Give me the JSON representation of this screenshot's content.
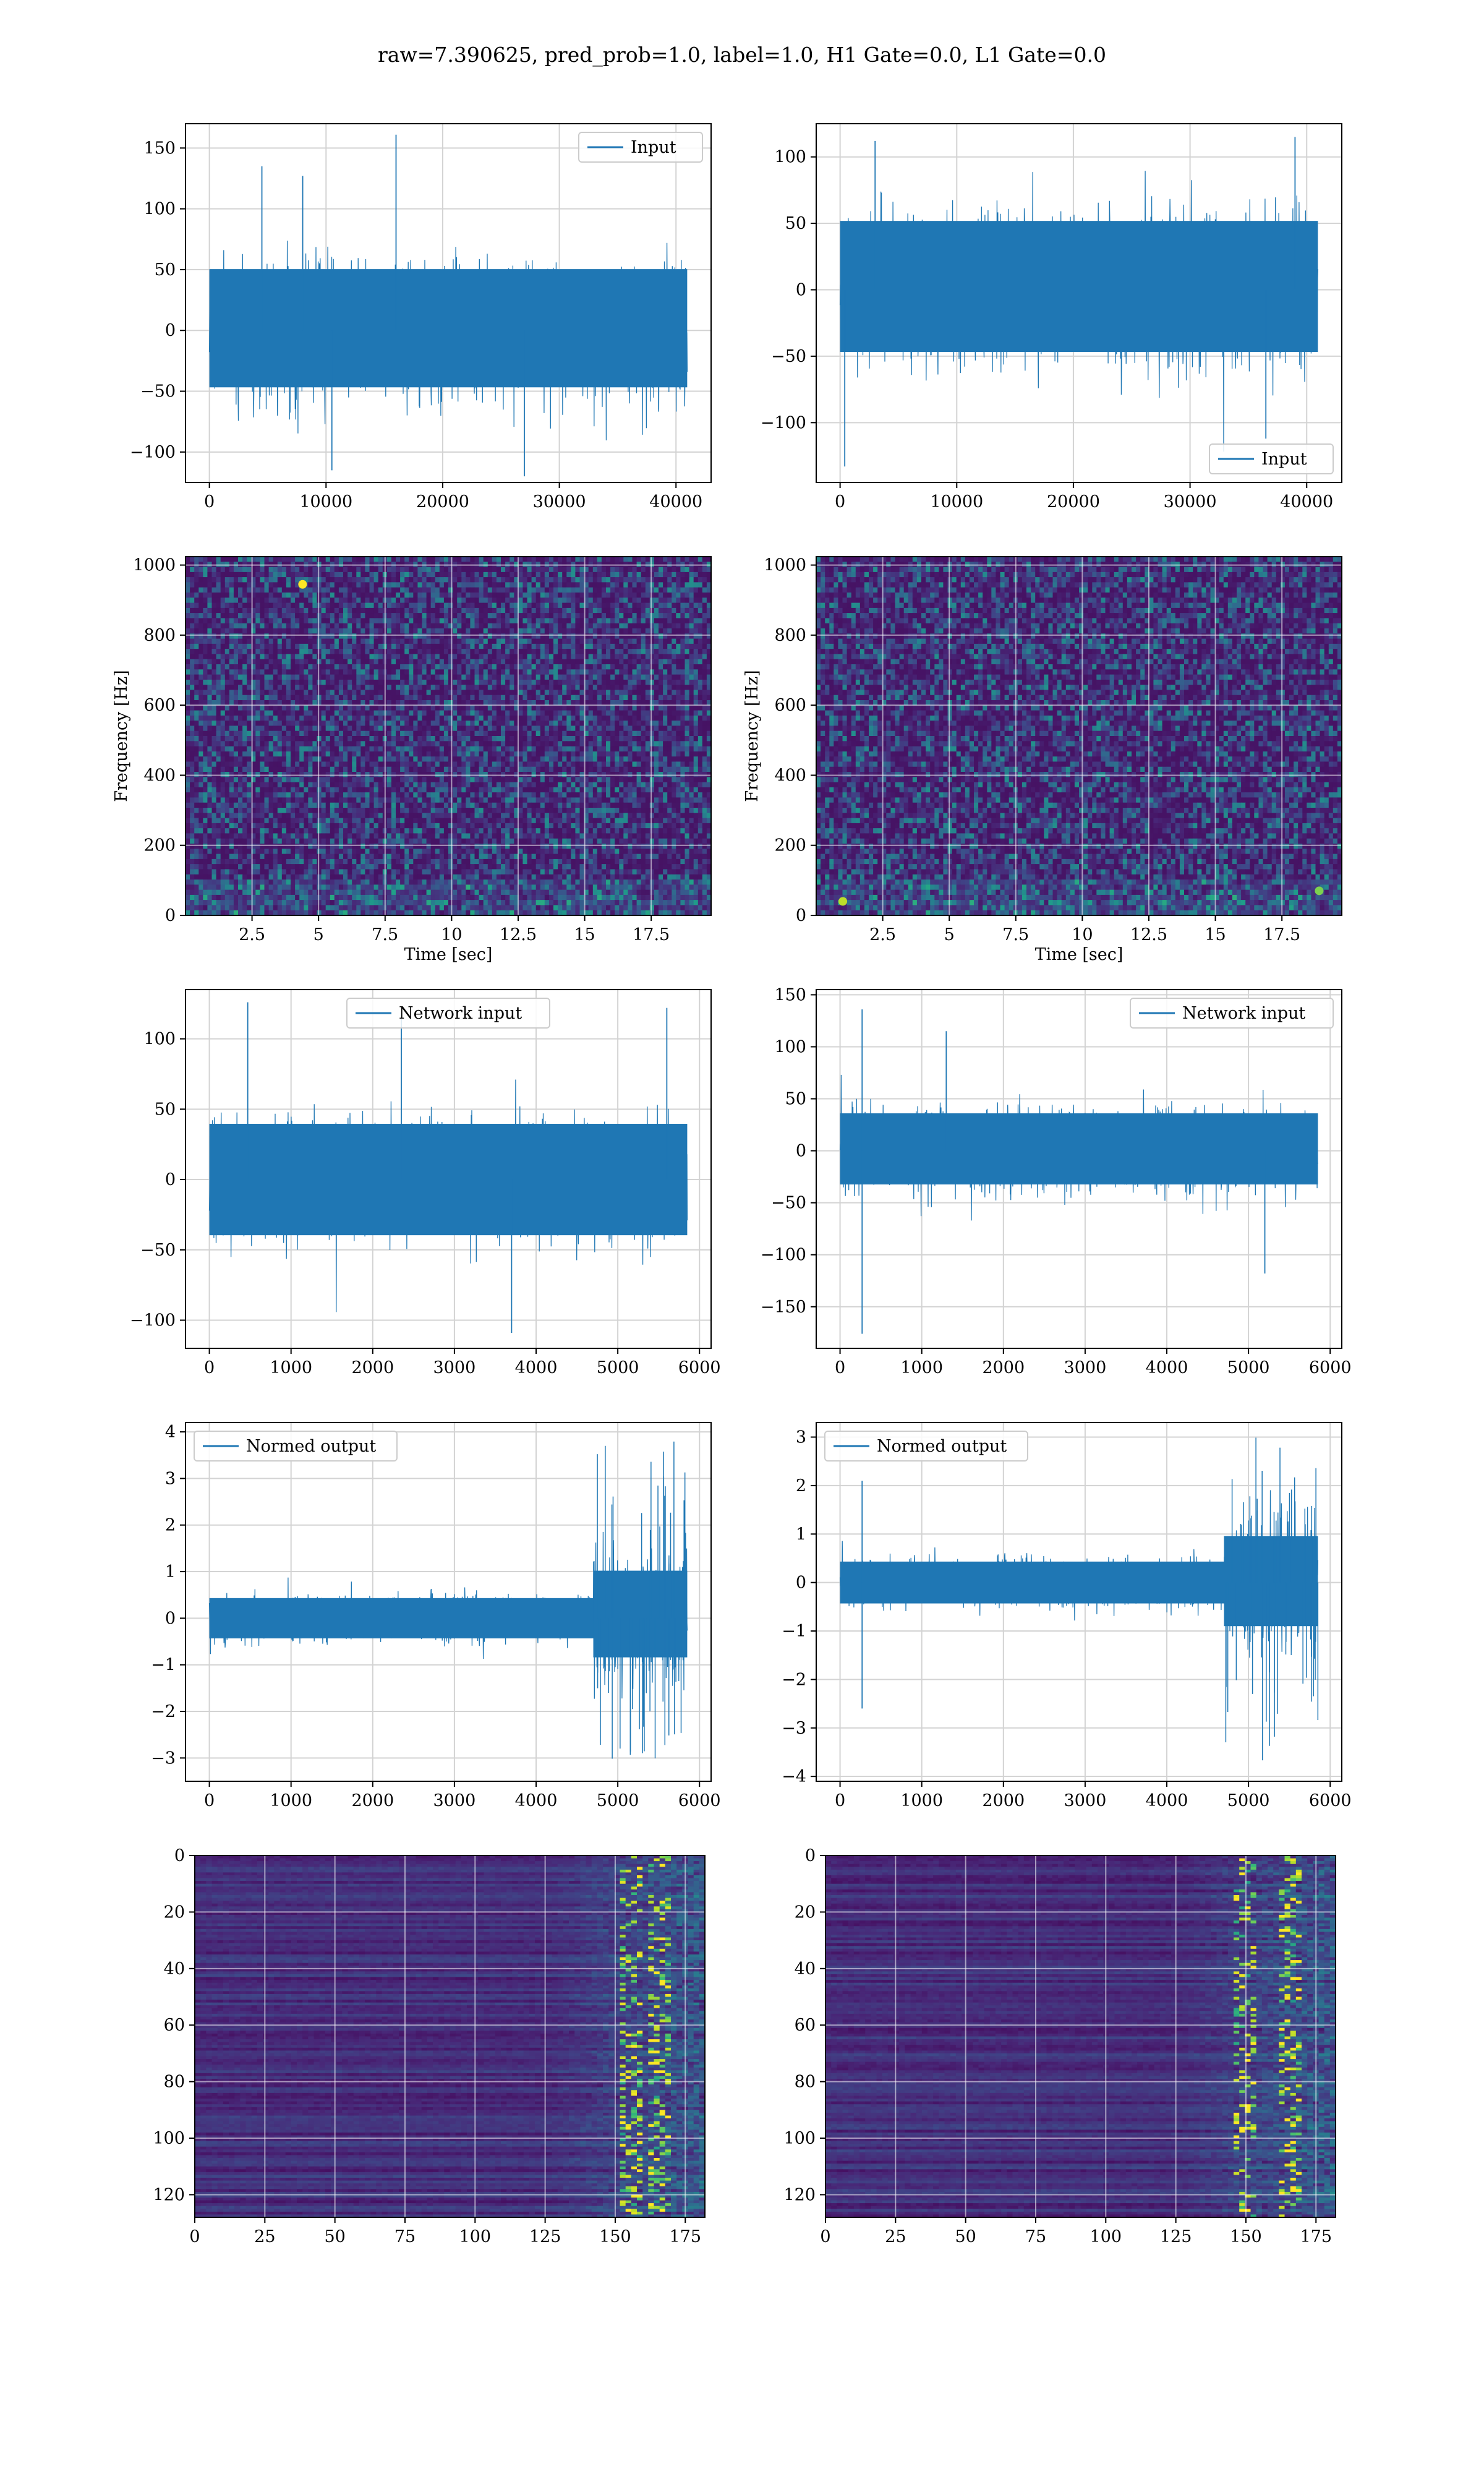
{
  "title": "raw=7.390625, pred_prob=1.0, label=1.0, H1 Gate=0.0, L1 Gate=0.0",
  "colors": {
    "series": "#1f77b4",
    "grid": "#d3d3d3",
    "viridis_low": "#440154",
    "viridis_high": "#fde725"
  },
  "chart_data": [
    {
      "id": "h1-input",
      "type": "line",
      "legend": "Input",
      "legend_loc": "upper right",
      "grid": true,
      "x_range": [
        0,
        40960
      ],
      "xlim": [
        -2048,
        43008
      ],
      "ylim": [
        -125,
        170
      ],
      "xticks": [
        0,
        10000,
        20000,
        30000,
        40000
      ],
      "yticks": [
        -100,
        -50,
        0,
        50,
        100,
        150
      ],
      "envelope": {
        "center": 0,
        "typical_band": [
          -65,
          70
        ],
        "max": 161,
        "min": -120,
        "spikes": [
          [
            16000,
            161
          ],
          [
            4500,
            135
          ],
          [
            8000,
            127
          ],
          [
            27000,
            -120
          ],
          [
            10500,
            -115
          ]
        ]
      }
    },
    {
      "id": "l1-input",
      "type": "line",
      "legend": "Input",
      "legend_loc": "lower right",
      "grid": true,
      "x_range": [
        0,
        40960
      ],
      "xlim": [
        -2048,
        43008
      ],
      "ylim": [
        -145,
        125
      ],
      "xticks": [
        0,
        10000,
        20000,
        30000,
        40000
      ],
      "yticks": [
        -100,
        -50,
        0,
        50,
        100
      ],
      "envelope": {
        "center": 0,
        "typical_band": [
          -65,
          72
        ],
        "max": 115,
        "min": -133,
        "spikes": [
          [
            400,
            -133
          ],
          [
            36500,
            -112
          ],
          [
            39000,
            115
          ],
          [
            3000,
            112
          ]
        ]
      }
    },
    {
      "id": "h1-spectrogram",
      "type": "heatmap",
      "colormap": "viridis",
      "grid": true,
      "xlabel": "Time [sec]",
      "ylabel": "Frequency [Hz]",
      "xlim": [
        0,
        19.75
      ],
      "ylim": [
        0,
        1024
      ],
      "xticks": [
        2.5,
        5.0,
        7.5,
        10.0,
        12.5,
        15.0,
        17.5
      ],
      "yticks": [
        0,
        200,
        400,
        600,
        800,
        1000
      ],
      "hotspots": [
        [
          4.4,
          945,
          1.0
        ]
      ]
    },
    {
      "id": "l1-spectrogram",
      "type": "heatmap",
      "colormap": "viridis",
      "grid": true,
      "xlabel": "Time [sec]",
      "ylabel": "Frequency [Hz]",
      "xlim": [
        0,
        19.75
      ],
      "ylim": [
        0,
        1024
      ],
      "xticks": [
        2.5,
        5.0,
        7.5,
        10.0,
        12.5,
        15.0,
        17.5
      ],
      "yticks": [
        0,
        200,
        400,
        600,
        800,
        1000
      ],
      "hotspots": [
        [
          1.0,
          40,
          0.9
        ],
        [
          18.9,
          70,
          0.8
        ]
      ]
    },
    {
      "id": "h1-network-input",
      "type": "line",
      "legend": "Network input",
      "legend_loc": "upper center",
      "grid": true,
      "x_range": [
        0,
        5850
      ],
      "xlim": [
        -292,
        6142
      ],
      "ylim": [
        -120,
        135
      ],
      "xticks": [
        0,
        1000,
        2000,
        3000,
        4000,
        5000,
        6000
      ],
      "yticks": [
        -100,
        -50,
        0,
        50,
        100
      ],
      "envelope": {
        "center": 0,
        "typical_band": [
          -55,
          55
        ],
        "max": 126,
        "min": -109,
        "spikes": [
          [
            470,
            126
          ],
          [
            3700,
            -109
          ],
          [
            5600,
            122
          ],
          [
            2350,
            118
          ]
        ]
      }
    },
    {
      "id": "l1-network-input",
      "type": "line",
      "legend": "Network input",
      "legend_loc": "upper right",
      "grid": true,
      "x_range": [
        0,
        5850
      ],
      "xlim": [
        -292,
        6142
      ],
      "ylim": [
        -190,
        155
      ],
      "xticks": [
        0,
        1000,
        2000,
        3000,
        4000,
        5000,
        6000
      ],
      "yticks": [
        -150,
        -100,
        -50,
        0,
        50,
        100,
        150
      ],
      "envelope": {
        "center": 0,
        "typical_band": [
          -45,
          50
        ],
        "max": 136,
        "min": -176,
        "spikes": [
          [
            270,
            136
          ],
          [
            270,
            -176
          ],
          [
            5200,
            -118
          ],
          [
            1300,
            115
          ]
        ]
      }
    },
    {
      "id": "h1-normed-output",
      "type": "line",
      "legend": "Normed output",
      "legend_loc": "upper left",
      "grid": true,
      "x_range": [
        0,
        5850
      ],
      "xlim": [
        -292,
        6142
      ],
      "ylim": [
        -3.5,
        4.2
      ],
      "xticks": [
        0,
        1000,
        2000,
        3000,
        4000,
        5000,
        6000
      ],
      "yticks": [
        -3,
        -2,
        -1,
        0,
        1,
        2,
        3,
        4
      ],
      "envelope": {
        "center": 0,
        "typical_band": [
          -0.6,
          0.6
        ],
        "burst_start": 4700,
        "burst_band": [
          -1.4,
          1.7
        ],
        "max": 3.8,
        "min": -3.2
      }
    },
    {
      "id": "l1-normed-output",
      "type": "line",
      "legend": "Normed output",
      "legend_loc": "upper left",
      "grid": true,
      "x_range": [
        0,
        5850
      ],
      "xlim": [
        -292,
        6142
      ],
      "ylim": [
        -4.1,
        3.3
      ],
      "xticks": [
        0,
        1000,
        2000,
        3000,
        4000,
        5000,
        6000
      ],
      "yticks": [
        -4,
        -3,
        -2,
        -1,
        0,
        1,
        2,
        3
      ],
      "envelope": {
        "center": 0,
        "typical_band": [
          -0.6,
          0.6
        ],
        "burst_start": 4700,
        "burst_band": [
          -1.5,
          1.6
        ],
        "max": 3.0,
        "min": -3.7,
        "spikes": [
          [
            270,
            2.1
          ],
          [
            270,
            -2.6
          ]
        ]
      }
    },
    {
      "id": "h1-activation-map",
      "type": "heatmap",
      "colormap": "viridis",
      "grid": true,
      "xlim": [
        0,
        182
      ],
      "ylim": [
        128,
        0
      ],
      "xticks": [
        0,
        25,
        50,
        75,
        100,
        125,
        150,
        175
      ],
      "yticks": [
        0,
        20,
        40,
        60,
        80,
        100,
        120
      ],
      "active_from_column": 125,
      "hot_columns": [
        155,
        165
      ]
    },
    {
      "id": "l1-activation-map",
      "type": "heatmap",
      "colormap": "viridis",
      "grid": true,
      "xlim": [
        0,
        182
      ],
      "ylim": [
        128,
        0
      ],
      "xticks": [
        0,
        25,
        50,
        75,
        100,
        125,
        150,
        175
      ],
      "yticks": [
        0,
        20,
        40,
        60,
        80,
        100,
        120
      ],
      "active_from_column": 125,
      "hot_columns": [
        150,
        165
      ]
    }
  ]
}
